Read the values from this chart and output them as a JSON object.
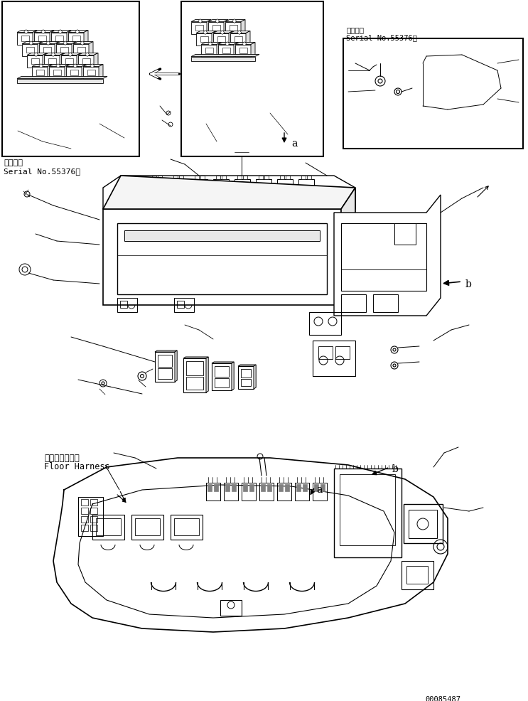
{
  "bg_color": "#ffffff",
  "line_color": "#000000",
  "fig_width": 7.43,
  "fig_height": 9.87,
  "dpi": 100,
  "serial_left_1": "適用号機",
  "serial_left_2": "Serial No.55376～",
  "serial_right_1": "適用号機",
  "serial_right_2": "Serial No.55376～",
  "label_a1": "a",
  "label_b1": "b",
  "label_a2": "a",
  "label_b2": "b",
  "floor_jp": "フロアハーネス",
  "floor_en": "Floor Harness",
  "part_number": "00085487"
}
